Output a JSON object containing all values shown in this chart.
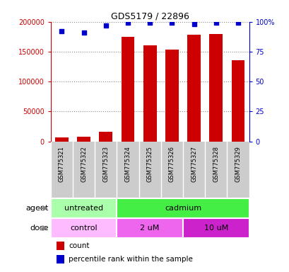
{
  "title": "GDS5179 / 22896",
  "samples": [
    "GSM775321",
    "GSM775322",
    "GSM775323",
    "GSM775324",
    "GSM775325",
    "GSM775326",
    "GSM775327",
    "GSM775328",
    "GSM775329"
  ],
  "counts": [
    7000,
    8000,
    16000,
    175000,
    160000,
    154000,
    178000,
    180000,
    136000
  ],
  "percentiles": [
    92,
    91,
    97,
    99,
    99,
    99,
    98,
    99,
    99
  ],
  "bar_color": "#cc0000",
  "dot_color": "#0000cc",
  "ylim_left": [
    0,
    200000
  ],
  "ylim_right": [
    0,
    100
  ],
  "yticks_left": [
    0,
    50000,
    100000,
    150000,
    200000
  ],
  "yticks_right": [
    0,
    25,
    50,
    75,
    100
  ],
  "ytick_labels_left": [
    "0",
    "50000",
    "100000",
    "150000",
    "200000"
  ],
  "ytick_labels_right": [
    "0",
    "25",
    "50",
    "75",
    "100%"
  ],
  "agent_groups": [
    {
      "label": "untreated",
      "start": 0,
      "end": 3,
      "color": "#aaffaa"
    },
    {
      "label": "cadmium",
      "start": 3,
      "end": 9,
      "color": "#44ee44"
    }
  ],
  "dose_groups": [
    {
      "label": "control",
      "start": 0,
      "end": 3,
      "color": "#ffbbff"
    },
    {
      "label": "2 uM",
      "start": 3,
      "end": 6,
      "color": "#ee66ee"
    },
    {
      "label": "10 uM",
      "start": 6,
      "end": 9,
      "color": "#cc22cc"
    }
  ],
  "legend_count_color": "#cc0000",
  "legend_percentile_color": "#0000cc",
  "left_axis_color": "#cc0000",
  "right_axis_color": "#0000cc",
  "grid_color": "#888888",
  "bg_color": "#ffffff",
  "sample_box_color": "#cccccc",
  "bar_width": 0.6
}
